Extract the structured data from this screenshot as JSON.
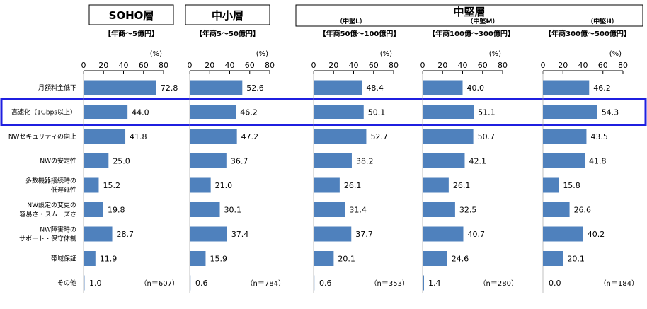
{
  "headers": [
    {
      "title": "SOHO層",
      "range": "【年商～5億円】"
    },
    {
      "title": "中小層",
      "range": "【年商5～50億円】"
    },
    {
      "title": "中堅層",
      "subs": [
        "（中堅L）",
        "（中堅M）",
        "（中堅H）"
      ],
      "ranges": [
        "【年商50億～100億円】",
        "【年商100億～300億円】",
        "【年商300億～500億円】"
      ]
    }
  ],
  "unit_label": "(%)",
  "colors": {
    "bar": "#4f81bd",
    "highlight": "#1f1fe0"
  },
  "highlight_category": "高速化（1Gbps以上）",
  "chart_data": {
    "type": "bar",
    "orientation": "horizontal",
    "xlim": [
      0,
      80
    ],
    "ticks": [
      "0",
      "20",
      "40",
      "60",
      "80"
    ],
    "categories": [
      [
        "月額料金低下"
      ],
      [
        "高速化（1Gbps以上）"
      ],
      [
        "NWセキュリティの向上"
      ],
      [
        "NWの安定性"
      ],
      [
        "多数機器接続時の",
        "低遅延性"
      ],
      [
        "NW設定の変更の",
        "容易さ・スムーズさ"
      ],
      [
        "NW障害時の",
        "サポート・保守体制"
      ],
      [
        "帯域保証"
      ],
      [
        "その他"
      ]
    ],
    "series": [
      {
        "values": [
          72.8,
          44.0,
          41.8,
          25.0,
          15.2,
          19.8,
          28.7,
          11.9,
          1.0
        ],
        "labels": [
          "72.8",
          "44.0",
          "41.8",
          "25.0",
          "15.2",
          "19.8",
          "28.7",
          "11.9",
          "1.0"
        ],
        "n": "（n＝607）"
      },
      {
        "values": [
          52.6,
          46.2,
          47.2,
          36.7,
          21.0,
          30.1,
          37.4,
          15.9,
          0.6
        ],
        "labels": [
          "52.6",
          "46.2",
          "47.2",
          "36.7",
          "21.0",
          "30.1",
          "37.4",
          "15.9",
          "0.6"
        ],
        "n": "（n＝784）"
      },
      {
        "values": [
          48.4,
          50.1,
          52.7,
          38.2,
          26.1,
          31.4,
          37.7,
          20.1,
          0.6
        ],
        "labels": [
          "48.4",
          "50.1",
          "52.7",
          "38.2",
          "26.1",
          "31.4",
          "37.7",
          "20.1",
          "0.6"
        ],
        "n": "（n＝353）"
      },
      {
        "values": [
          40.0,
          51.1,
          50.7,
          42.1,
          26.1,
          32.5,
          40.7,
          24.6,
          1.4
        ],
        "labels": [
          "40.0",
          "51.1",
          "50.7",
          "42.1",
          "26.1",
          "32.5",
          "40.7",
          "24.6",
          "1.4"
        ],
        "n": "（n＝280）"
      },
      {
        "values": [
          46.2,
          54.3,
          43.5,
          41.8,
          15.8,
          26.6,
          40.2,
          20.1,
          0.0
        ],
        "labels": [
          "46.2",
          "54.3",
          "43.5",
          "41.8",
          "15.8",
          "26.6",
          "40.2",
          "20.1",
          "0.0"
        ],
        "n": "（n＝184）"
      }
    ]
  }
}
